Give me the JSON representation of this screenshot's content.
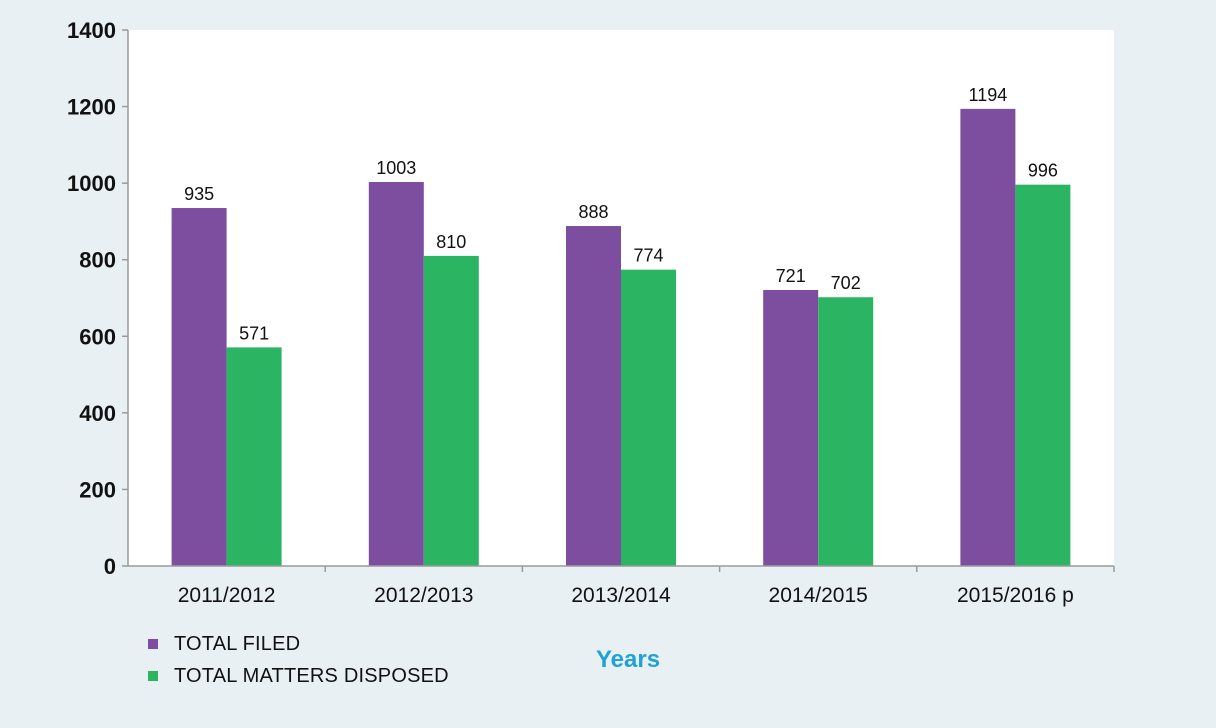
{
  "colors": {
    "page_background": "#e9f0f4",
    "plot_background": "#ffffff",
    "axis": "#9a9a9a",
    "x_title": "#1fa2d6"
  },
  "chart_data": {
    "type": "bar",
    "title": "",
    "xlabel": "Years",
    "ylabel": "",
    "categories": [
      "2011/2012",
      "2012/2013",
      "2013/2014",
      "2014/2015",
      "2015/2016 p"
    ],
    "ylim": [
      0,
      1400
    ],
    "yticks": [
      0,
      200,
      400,
      600,
      800,
      1000,
      1200,
      1400
    ],
    "grid": false,
    "legend_position": "bottom-left",
    "series": [
      {
        "name": "TOTAL FILED",
        "color": "#7d4ea0",
        "values": [
          935,
          1003,
          888,
          721,
          1194
        ]
      },
      {
        "name": "TOTAL MATTERS DISPOSED",
        "color": "#2bb563",
        "values": [
          571,
          810,
          774,
          702,
          996
        ]
      }
    ],
    "data_labels": [
      [
        "935",
        "1003",
        "888",
        "721",
        "1194"
      ],
      [
        "571",
        "810",
        "774",
        "702",
        "996"
      ]
    ]
  }
}
